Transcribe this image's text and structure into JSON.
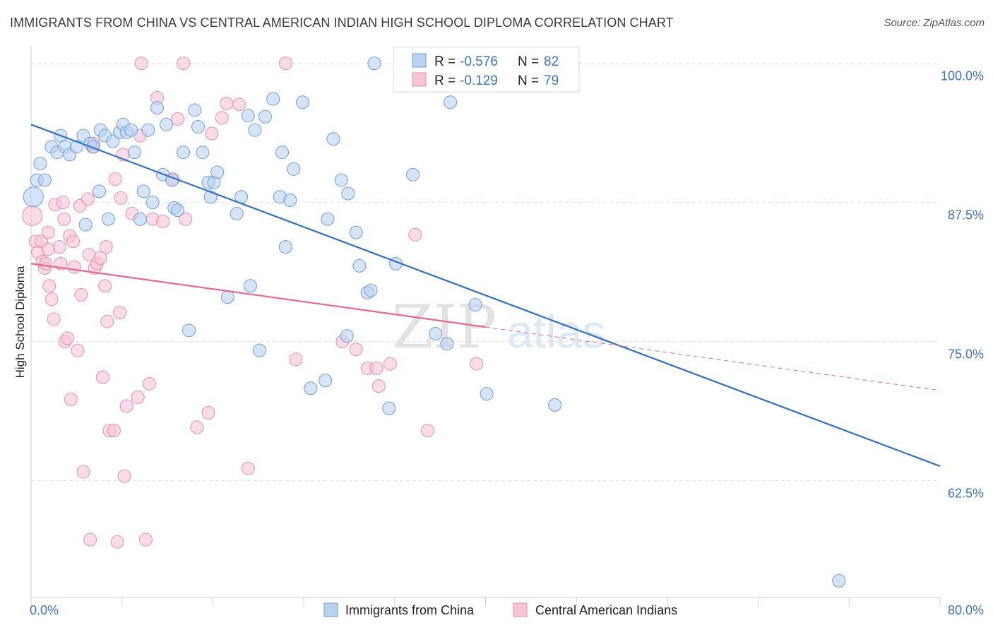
{
  "header": {
    "title": "IMMIGRANTS FROM CHINA VS CENTRAL AMERICAN INDIAN HIGH SCHOOL DIPLOMA CORRELATION CHART",
    "source": "Source: ZipAtlas.com"
  },
  "watermark": {
    "zip": "ZIP",
    "atlas": "atlas"
  },
  "colors": {
    "blue_fill": "#b9d2f0",
    "blue_stroke": "#6f9fdc",
    "blue_line": "#2f6fd0",
    "pink_fill": "#f6c5d5",
    "pink_stroke": "#ec8fad",
    "pink_line": "#e8668f",
    "tick_text": "#3b73c8",
    "grid": "#e3e3e3"
  },
  "chart_data": {
    "type": "scatter",
    "title": "IMMIGRANTS FROM CHINA VS CENTRAL AMERICAN INDIAN HIGH SCHOOL DIPLOMA CORRELATION CHART",
    "xlabel": "",
    "ylabel": "High School Diploma",
    "xlim": [
      0,
      80
    ],
    "ylim": [
      52,
      101.5
    ],
    "x_tick_labels": {
      "left": "0.0%",
      "right": "80.0%"
    },
    "y_ticks": [
      {
        "value": 100.0,
        "label": "100.0%"
      },
      {
        "value": 87.5,
        "label": "87.5%"
      },
      {
        "value": 75.0,
        "label": "75.0%"
      },
      {
        "value": 62.5,
        "label": "62.5%"
      }
    ],
    "legend_position": "bottom-center",
    "series": [
      {
        "name": "Immigrants from China",
        "color": "blue",
        "stats": {
          "r_label": "R = ",
          "r_value": "-0.576",
          "n_label": "N = ",
          "n_value": "82"
        },
        "trend": {
          "x1": 0,
          "y1": 94.5,
          "x2": 80,
          "y2": 63.8,
          "dashed_from": null
        },
        "points": [
          [
            0.2,
            88.0
          ],
          [
            0.5,
            89.5
          ],
          [
            0.8,
            91.0
          ],
          [
            1.2,
            89.5
          ],
          [
            1.8,
            92.5
          ],
          [
            2.3,
            92.0
          ],
          [
            2.6,
            93.5
          ],
          [
            3.0,
            92.5
          ],
          [
            3.4,
            91.8
          ],
          [
            4.0,
            92.5
          ],
          [
            4.6,
            93.5
          ],
          [
            4.8,
            85.5
          ],
          [
            5.2,
            92.8
          ],
          [
            5.5,
            92.5
          ],
          [
            6.0,
            88.5
          ],
          [
            6.1,
            94.0
          ],
          [
            6.5,
            93.5
          ],
          [
            6.8,
            86.0
          ],
          [
            7.2,
            93.0
          ],
          [
            7.8,
            93.8
          ],
          [
            8.1,
            94.5
          ],
          [
            8.4,
            93.8
          ],
          [
            8.8,
            94.0
          ],
          [
            9.1,
            92.0
          ],
          [
            9.6,
            86.0
          ],
          [
            9.9,
            88.5
          ],
          [
            10.3,
            94.0
          ],
          [
            10.7,
            87.5
          ],
          [
            11.1,
            96.0
          ],
          [
            11.6,
            90.0
          ],
          [
            11.9,
            94.5
          ],
          [
            12.4,
            89.5
          ],
          [
            12.6,
            87.0
          ],
          [
            12.9,
            86.8
          ],
          [
            13.4,
            92.0
          ],
          [
            13.9,
            76.0
          ],
          [
            14.4,
            95.8
          ],
          [
            14.7,
            94.3
          ],
          [
            15.1,
            92.0
          ],
          [
            15.6,
            89.3
          ],
          [
            15.8,
            88.0
          ],
          [
            16.1,
            89.3
          ],
          [
            16.4,
            90.2
          ],
          [
            17.3,
            79.0
          ],
          [
            18.1,
            86.5
          ],
          [
            18.5,
            88.0
          ],
          [
            19.1,
            95.3
          ],
          [
            19.3,
            80.0
          ],
          [
            19.7,
            94.0
          ],
          [
            20.1,
            74.2
          ],
          [
            20.6,
            95.2
          ],
          [
            21.3,
            96.8
          ],
          [
            21.9,
            88.0
          ],
          [
            22.1,
            92.0
          ],
          [
            22.4,
            83.5
          ],
          [
            22.8,
            87.7
          ],
          [
            23.1,
            90.5
          ],
          [
            23.9,
            96.5
          ],
          [
            24.6,
            70.8
          ],
          [
            25.9,
            71.5
          ],
          [
            26.1,
            86.0
          ],
          [
            26.6,
            93.2
          ],
          [
            27.3,
            89.5
          ],
          [
            27.8,
            75.5
          ],
          [
            27.9,
            88.3
          ],
          [
            28.6,
            84.8
          ],
          [
            28.9,
            81.8
          ],
          [
            29.6,
            79.4
          ],
          [
            29.9,
            79.6
          ],
          [
            30.2,
            100.0
          ],
          [
            31.5,
            69.0
          ],
          [
            32.1,
            82.0
          ],
          [
            32.9,
            99.8
          ],
          [
            33.4,
            99.8
          ],
          [
            33.6,
            90.0
          ],
          [
            35.6,
            75.7
          ],
          [
            36.6,
            74.8
          ],
          [
            36.9,
            96.5
          ],
          [
            39.1,
            78.3
          ],
          [
            40.1,
            70.3
          ],
          [
            46.1,
            69.3
          ],
          [
            71.1,
            53.5
          ]
        ]
      },
      {
        "name": "Central American Indians",
        "color": "pink",
        "stats": {
          "r_label": "R = ",
          "r_value": "-0.129",
          "n_label": "N = ",
          "n_value": "79"
        },
        "trend": {
          "x1": 0,
          "y1": 82.0,
          "x2": 80,
          "y2": 70.6,
          "dashed_from": 40
        },
        "points": [
          [
            0.1,
            86.3
          ],
          [
            0.4,
            84.0
          ],
          [
            0.6,
            83.0
          ],
          [
            0.9,
            84.0
          ],
          [
            1.0,
            82.2
          ],
          [
            1.2,
            81.6
          ],
          [
            1.3,
            82.0
          ],
          [
            1.5,
            84.8
          ],
          [
            1.6,
            80.0
          ],
          [
            1.8,
            78.8
          ],
          [
            2.0,
            77.0
          ],
          [
            2.1,
            87.3
          ],
          [
            2.5,
            83.5
          ],
          [
            2.6,
            82.0
          ],
          [
            2.8,
            87.5
          ],
          [
            2.9,
            86.0
          ],
          [
            3.0,
            75.0
          ],
          [
            3.2,
            75.3
          ],
          [
            3.4,
            84.5
          ],
          [
            3.5,
            69.8
          ],
          [
            3.7,
            84.0
          ],
          [
            3.8,
            81.7
          ],
          [
            4.1,
            74.2
          ],
          [
            4.3,
            87.2
          ],
          [
            4.4,
            79.2
          ],
          [
            4.6,
            63.3
          ],
          [
            5.0,
            87.8
          ],
          [
            5.1,
            82.8
          ],
          [
            5.4,
            92.5
          ],
          [
            5.5,
            92.8
          ],
          [
            5.6,
            81.6
          ],
          [
            5.8,
            82.0
          ],
          [
            6.1,
            82.5
          ],
          [
            6.3,
            71.8
          ],
          [
            6.5,
            80.0
          ],
          [
            6.6,
            83.5
          ],
          [
            6.7,
            76.8
          ],
          [
            6.9,
            67.0
          ],
          [
            7.3,
            67.0
          ],
          [
            7.4,
            89.6
          ],
          [
            7.8,
            77.6
          ],
          [
            7.9,
            87.9
          ],
          [
            8.1,
            91.8
          ],
          [
            8.2,
            62.9
          ],
          [
            8.4,
            69.2
          ],
          [
            8.9,
            86.5
          ],
          [
            9.4,
            70.0
          ],
          [
            9.6,
            93.5
          ],
          [
            9.7,
            100.0
          ],
          [
            10.1,
            57.2
          ],
          [
            10.4,
            71.2
          ],
          [
            10.7,
            86.0
          ],
          [
            11.1,
            96.9
          ],
          [
            11.6,
            85.8
          ],
          [
            12.5,
            89.6
          ],
          [
            12.9,
            95.0
          ],
          [
            13.4,
            100.0
          ],
          [
            13.6,
            86.0
          ],
          [
            14.6,
            67.3
          ],
          [
            15.6,
            68.6
          ],
          [
            15.9,
            93.7
          ],
          [
            16.8,
            95.1
          ],
          [
            17.2,
            96.4
          ],
          [
            18.3,
            96.3
          ],
          [
            19.1,
            63.6
          ],
          [
            22.4,
            100.0
          ],
          [
            23.3,
            73.4
          ],
          [
            27.4,
            75.0
          ],
          [
            28.6,
            74.3
          ],
          [
            29.6,
            72.6
          ],
          [
            30.4,
            72.6
          ],
          [
            30.6,
            71.0
          ],
          [
            31.6,
            73.0
          ],
          [
            33.8,
            84.6
          ],
          [
            34.9,
            67.0
          ],
          [
            39.2,
            73.0
          ],
          [
            5.2,
            57.2
          ],
          [
            7.6,
            57.0
          ],
          [
            1.5,
            83.3
          ]
        ]
      }
    ]
  },
  "legend": {
    "items": [
      {
        "label": "Immigrants from China"
      },
      {
        "label": "Central American Indians"
      }
    ]
  }
}
